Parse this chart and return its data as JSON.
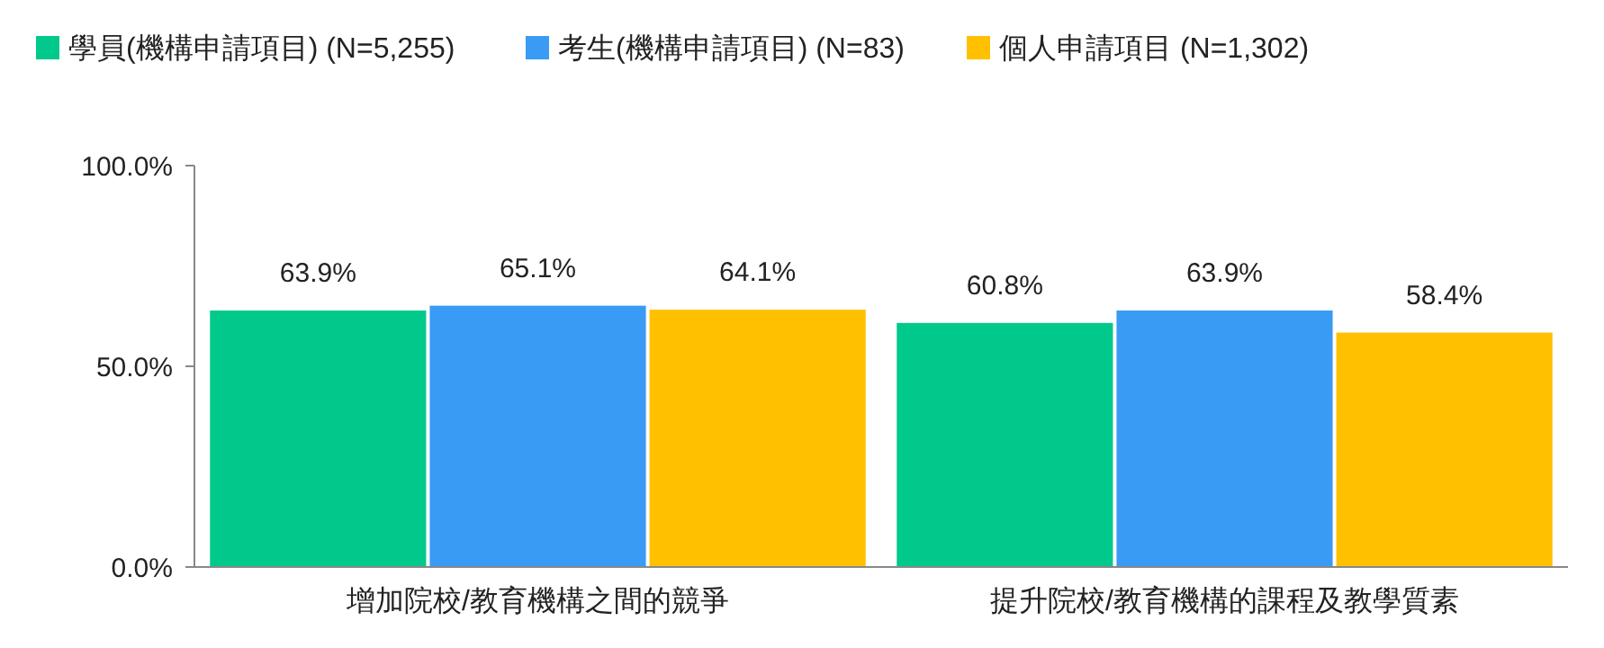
{
  "chart_data": {
    "type": "bar",
    "categories": [
      "增加院校/教育機構之間的競爭",
      "提升院校/教育機構的課程及教學質素"
    ],
    "series": [
      {
        "name": "學員(機構申請項目) (N=5,255)",
        "color": "#00c98b",
        "values": [
          63.9,
          60.8
        ],
        "value_labels": [
          "63.9%",
          "60.8%"
        ]
      },
      {
        "name": "考生(機構申請項目) (N=83)",
        "color": "#3a9bf5",
        "values": [
          65.1,
          63.9
        ],
        "value_labels": [
          "65.1%",
          "63.9%"
        ]
      },
      {
        "name": "個人申請項目 (N=1,302)",
        "color": "#ffc000",
        "values": [
          64.1,
          58.4
        ],
        "value_labels": [
          "64.1%",
          "58.4%"
        ]
      }
    ],
    "ylim": [
      0,
      100
    ],
    "yticks": [
      {
        "value": 0,
        "label": "0.0%"
      },
      {
        "value": 50,
        "label": "50.0%"
      },
      {
        "value": 100,
        "label": "100.0%"
      }
    ],
    "legend": "top",
    "grid": false
  }
}
